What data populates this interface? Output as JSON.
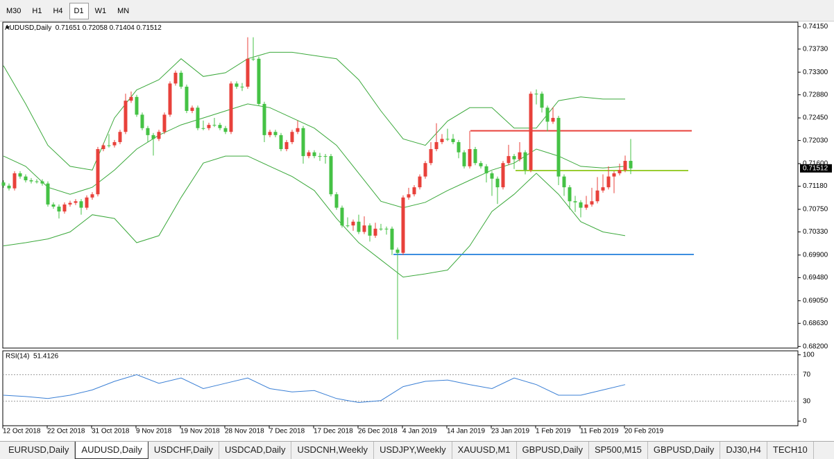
{
  "toolbar": [
    "M30",
    "H1",
    "H4",
    "D1",
    "W1",
    "MN"
  ],
  "active_timeframe": "D1",
  "chart_data": {
    "type": "candlestick",
    "title": "AUDUSD,Daily",
    "up_color": "#e8413b",
    "down_color": "#45c245",
    "candles": [
      [
        0.7125,
        0.7129,
        0.7115,
        0.7119
      ],
      [
        0.7119,
        0.7123,
        0.711,
        0.7114
      ],
      [
        0.7114,
        0.7146,
        0.711,
        0.7142
      ],
      [
        0.7142,
        0.7146,
        0.7132,
        0.7136
      ],
      [
        0.7136,
        0.714,
        0.7125,
        0.7129
      ],
      [
        0.7129,
        0.7133,
        0.7123,
        0.7127
      ],
      [
        0.7127,
        0.7131,
        0.7123,
        0.7127
      ],
      [
        0.7127,
        0.7131,
        0.7119,
        0.7123
      ],
      [
        0.7123,
        0.7127,
        0.708,
        0.7084
      ],
      [
        0.7084,
        0.7088,
        0.7076,
        0.708
      ],
      [
        0.708,
        0.7084,
        0.7058,
        0.7071
      ],
      [
        0.7071,
        0.7088,
        0.7067,
        0.7084
      ],
      [
        0.7084,
        0.7091,
        0.708,
        0.7087
      ],
      [
        0.7087,
        0.7094,
        0.7083,
        0.709
      ],
      [
        0.709,
        0.7094,
        0.7065,
        0.7078
      ],
      [
        0.7078,
        0.7101,
        0.7074,
        0.7097
      ],
      [
        0.7097,
        0.7107,
        0.7093,
        0.7103
      ],
      [
        0.7103,
        0.7191,
        0.7099,
        0.7187
      ],
      [
        0.7187,
        0.7198,
        0.7183,
        0.7194
      ],
      [
        0.7194,
        0.7215,
        0.719,
        0.7194
      ],
      [
        0.7194,
        0.7204,
        0.719,
        0.72
      ],
      [
        0.72,
        0.7223,
        0.7196,
        0.7219
      ],
      [
        0.7219,
        0.729,
        0.7215,
        0.7277
      ],
      [
        0.7277,
        0.7294,
        0.7273,
        0.7284
      ],
      [
        0.7284,
        0.7288,
        0.7247,
        0.7251
      ],
      [
        0.7251,
        0.7255,
        0.7222,
        0.7226
      ],
      [
        0.7226,
        0.723,
        0.72,
        0.7213
      ],
      [
        0.7213,
        0.7217,
        0.7175,
        0.7206
      ],
      [
        0.7206,
        0.7223,
        0.7202,
        0.7219
      ],
      [
        0.7219,
        0.7255,
        0.7215,
        0.7251
      ],
      [
        0.7251,
        0.7313,
        0.7247,
        0.7309
      ],
      [
        0.7309,
        0.7333,
        0.7305,
        0.7329
      ],
      [
        0.7329,
        0.7333,
        0.7299,
        0.7303
      ],
      [
        0.7303,
        0.7307,
        0.7254,
        0.7258
      ],
      [
        0.7258,
        0.7268,
        0.7254,
        0.7264
      ],
      [
        0.7264,
        0.7268,
        0.7222,
        0.7226
      ],
      [
        0.7226,
        0.724,
        0.7222,
        0.7226
      ],
      [
        0.7226,
        0.7236,
        0.7222,
        0.7232
      ],
      [
        0.7232,
        0.7245,
        0.7228,
        0.7232
      ],
      [
        0.7232,
        0.7236,
        0.7222,
        0.7226
      ],
      [
        0.7226,
        0.723,
        0.7215,
        0.7219
      ],
      [
        0.7219,
        0.7313,
        0.7215,
        0.7309
      ],
      [
        0.7309,
        0.7313,
        0.7299,
        0.7303
      ],
      [
        0.7303,
        0.731,
        0.7295,
        0.7303
      ],
      [
        0.7303,
        0.7395,
        0.7299,
        0.7355
      ],
      [
        0.7355,
        0.7395,
        0.7351,
        0.7355
      ],
      [
        0.7355,
        0.7359,
        0.7267,
        0.7271
      ],
      [
        0.7271,
        0.7275,
        0.72,
        0.7213
      ],
      [
        0.7213,
        0.7223,
        0.7209,
        0.7219
      ],
      [
        0.7219,
        0.7223,
        0.7209,
        0.7213
      ],
      [
        0.7213,
        0.7217,
        0.7183,
        0.7187
      ],
      [
        0.7187,
        0.7204,
        0.7183,
        0.72
      ],
      [
        0.72,
        0.7223,
        0.7196,
        0.7219
      ],
      [
        0.7219,
        0.724,
        0.7215,
        0.7226
      ],
      [
        0.7226,
        0.723,
        0.716,
        0.7174
      ],
      [
        0.7174,
        0.7185,
        0.717,
        0.7181
      ],
      [
        0.7181,
        0.7185,
        0.717,
        0.7174
      ],
      [
        0.7174,
        0.718,
        0.7165,
        0.7174
      ],
      [
        0.7174,
        0.7178,
        0.716,
        0.7174
      ],
      [
        0.7174,
        0.7178,
        0.7099,
        0.7103
      ],
      [
        0.7103,
        0.7107,
        0.7074,
        0.7078
      ],
      [
        0.7078,
        0.7082,
        0.7041,
        0.7045
      ],
      [
        0.7045,
        0.706,
        0.7041,
        0.7045
      ],
      [
        0.7045,
        0.7056,
        0.7035,
        0.7052
      ],
      [
        0.7052,
        0.7065,
        0.7029,
        0.7033
      ],
      [
        0.7033,
        0.7062,
        0.7029,
        0.7045
      ],
      [
        0.7045,
        0.7049,
        0.7015,
        0.7026
      ],
      [
        0.7026,
        0.705,
        0.7022,
        0.7039
      ],
      [
        0.7039,
        0.7048,
        0.7035,
        0.7039
      ],
      [
        0.7039,
        0.7043,
        0.7028,
        0.7039
      ],
      [
        0.7039,
        0.7043,
        0.699,
        0.7
      ],
      [
        0.7,
        0.7004,
        0.6833,
        0.6994
      ],
      [
        0.6994,
        0.7101,
        0.699,
        0.7097
      ],
      [
        0.7097,
        0.7115,
        0.7093,
        0.7103
      ],
      [
        0.7103,
        0.712,
        0.7099,
        0.7116
      ],
      [
        0.7116,
        0.714,
        0.7112,
        0.7136
      ],
      [
        0.7136,
        0.7165,
        0.7132,
        0.7161
      ],
      [
        0.7161,
        0.72,
        0.7157,
        0.7187
      ],
      [
        0.7187,
        0.7235,
        0.7183,
        0.72
      ],
      [
        0.72,
        0.7215,
        0.7196,
        0.7206
      ],
      [
        0.7206,
        0.7225,
        0.7202,
        0.7206
      ],
      [
        0.7206,
        0.7215,
        0.7196,
        0.72
      ],
      [
        0.72,
        0.7204,
        0.717,
        0.7181
      ],
      [
        0.7181,
        0.7185,
        0.7151,
        0.7155
      ],
      [
        0.7155,
        0.7221,
        0.7151,
        0.7187
      ],
      [
        0.7187,
        0.7191,
        0.7157,
        0.7161
      ],
      [
        0.7161,
        0.7165,
        0.7151,
        0.7155
      ],
      [
        0.7155,
        0.7159,
        0.7125,
        0.7142
      ],
      [
        0.7142,
        0.7146,
        0.71,
        0.7132
      ],
      [
        0.7132,
        0.7136,
        0.7085,
        0.7116
      ],
      [
        0.7116,
        0.7165,
        0.7112,
        0.7161
      ],
      [
        0.7161,
        0.7195,
        0.7157,
        0.7174
      ],
      [
        0.7174,
        0.7178,
        0.715,
        0.7168
      ],
      [
        0.7168,
        0.72,
        0.7164,
        0.7181
      ],
      [
        0.7181,
        0.7185,
        0.714,
        0.7148
      ],
      [
        0.7148,
        0.7294,
        0.7144,
        0.729
      ],
      [
        0.729,
        0.7298,
        0.727,
        0.729
      ],
      [
        0.729,
        0.7294,
        0.7255,
        0.7264
      ],
      [
        0.7264,
        0.7268,
        0.722,
        0.7238
      ],
      [
        0.7238,
        0.7265,
        0.7234,
        0.7245
      ],
      [
        0.7245,
        0.7249,
        0.712,
        0.7136
      ],
      [
        0.7136,
        0.714,
        0.71,
        0.7116
      ],
      [
        0.7116,
        0.712,
        0.7075,
        0.709
      ],
      [
        0.709,
        0.71,
        0.707,
        0.7088
      ],
      [
        0.7088,
        0.7092,
        0.706,
        0.7078
      ],
      [
        0.7078,
        0.71,
        0.7074,
        0.7084
      ],
      [
        0.7084,
        0.7115,
        0.708,
        0.709
      ],
      [
        0.709,
        0.7135,
        0.7086,
        0.711
      ],
      [
        0.711,
        0.714,
        0.7106,
        0.7116
      ],
      [
        0.7116,
        0.7155,
        0.7112,
        0.7136
      ],
      [
        0.7136,
        0.7146,
        0.7105,
        0.7142
      ],
      [
        0.7142,
        0.716,
        0.7138,
        0.7148
      ],
      [
        0.7148,
        0.7175,
        0.7144,
        0.71651
      ],
      [
        0.71651,
        0.72058,
        0.71404,
        0.71512
      ]
    ],
    "ylim": [
      0.6817,
      0.7423
    ],
    "yticks": [
      {
        "value": 0.7415,
        "label": "0.74150"
      },
      {
        "value": 0.7373,
        "label": "0.73730"
      },
      {
        "value": 0.733,
        "label": "0.73300"
      },
      {
        "value": 0.7288,
        "label": "0.72880"
      },
      {
        "value": 0.7245,
        "label": "0.72450"
      },
      {
        "value": 0.7203,
        "label": "0.72030"
      },
      {
        "value": 0.716,
        "label": "0.71600"
      },
      {
        "value": 0.7118,
        "label": "0.71180"
      },
      {
        "value": 0.7075,
        "label": "0.70750"
      },
      {
        "value": 0.7033,
        "label": "0.70330"
      },
      {
        "value": 0.699,
        "label": "0.69900"
      },
      {
        "value": 0.6948,
        "label": "0.69480"
      },
      {
        "value": 0.6905,
        "label": "0.69050"
      },
      {
        "value": 0.6863,
        "label": "0.68630"
      },
      {
        "value": 0.682,
        "label": "0.68200"
      }
    ],
    "x_labels": [
      "12 Oct 2018",
      "22 Oct 2018",
      "31 Oct 2018",
      "9 Nov 2018",
      "19 Nov 2018",
      "28 Nov 2018",
      "7 Dec 2018",
      "17 Dec 2018",
      "26 Dec 2018",
      "4 Jan 2019",
      "14 Jan 2019",
      "23 Jan 2019",
      "1 Feb 2019",
      "11 Feb 2019",
      "20 Feb 2019"
    ],
    "bollinger": {
      "color": "#3aa83a",
      "upper": [
        0.7342,
        0.7271,
        0.7194,
        0.7155,
        0.7148,
        0.7245,
        0.7297,
        0.7316,
        0.7355,
        0.7322,
        0.7329,
        0.7355,
        0.7367,
        0.7367,
        0.7361,
        0.7355,
        0.7316,
        0.7258,
        0.7206,
        0.7194,
        0.7239,
        0.7264,
        0.7264,
        0.7226,
        0.7226,
        0.7277,
        0.7284,
        0.728,
        0.728
      ],
      "middle": [
        0.7174,
        0.7155,
        0.7116,
        0.7103,
        0.7116,
        0.7148,
        0.7187,
        0.7213,
        0.7232,
        0.7245,
        0.7258,
        0.7271,
        0.7264,
        0.7245,
        0.7226,
        0.7194,
        0.7142,
        0.709,
        0.7078,
        0.7088,
        0.711,
        0.7129,
        0.7148,
        0.7161,
        0.7187,
        0.7174,
        0.7155,
        0.7152,
        0.7155
      ],
      "lower": [
        0.7007,
        0.7013,
        0.702,
        0.7033,
        0.7065,
        0.7058,
        0.7013,
        0.7026,
        0.7097,
        0.7161,
        0.7174,
        0.7174,
        0.7155,
        0.7136,
        0.711,
        0.7058,
        0.7013,
        0.6981,
        0.6949,
        0.6955,
        0.6962,
        0.7007,
        0.7071,
        0.7103,
        0.7142,
        0.7103,
        0.7052,
        0.7033,
        0.7026
      ]
    },
    "levels": [
      {
        "value": 0.7221,
        "color": "#e8413b"
      },
      {
        "value": 0.7147,
        "color": "#9acd32"
      },
      {
        "value": 0.6991,
        "color": "#3c8ee0"
      }
    ],
    "rsi": {
      "label": "RSI(14)",
      "value": 51.4126,
      "color": "#3a7fd5",
      "ylim": [
        -7,
        106
      ],
      "yticks": [
        0,
        30,
        70,
        100
      ],
      "values": [
        39,
        37,
        34,
        39,
        47,
        60,
        70,
        57,
        65,
        49,
        57,
        65,
        49,
        44,
        46,
        34,
        28,
        31,
        52,
        60,
        62,
        55,
        49,
        65,
        55,
        39,
        39,
        47,
        55
      ]
    }
  },
  "tabs": [
    "EURUSD,Daily",
    "AUDUSD,Daily",
    "USDCHF,Daily",
    "USDCAD,Daily",
    "USDCNH,Weekly",
    "USDJPY,Weekly",
    "XAUUSD,M1",
    "GBPUSD,Daily",
    "SP500,M15",
    "GBPUSD,Daily",
    "DJ30,H4",
    "TECH10"
  ],
  "active_tab": "AUDUSD,Daily"
}
